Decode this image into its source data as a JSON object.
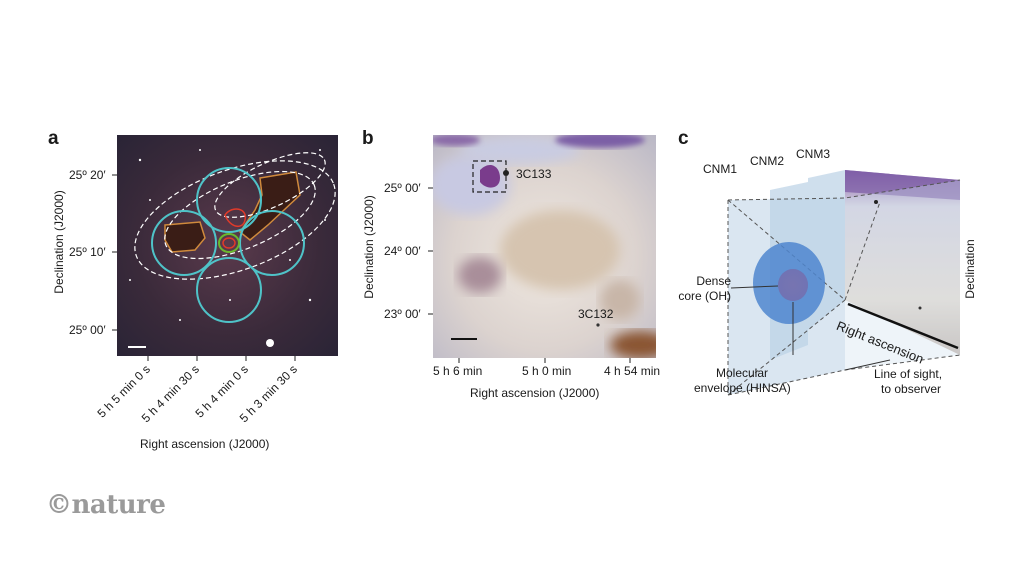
{
  "panels": {
    "a": {
      "label": "a",
      "ylabel": "Declination (J2000)",
      "xlabel": "Right ascension (J2000)",
      "yticks": [
        "25º 20′",
        "25º 10′",
        "25º 00′"
      ],
      "xticks": [
        "5 h 5 min 0 s",
        "5 h 4 min 30 s",
        "5 h 4 min 0 s",
        "5 h 3 min 30 s"
      ]
    },
    "b": {
      "label": "b",
      "ylabel": "Declination (J2000)",
      "xlabel": "Right ascension (J2000)",
      "yticks": [
        "25º 00′",
        "24º 00′",
        "23º 00′"
      ],
      "xticks": [
        "5 h 6 min",
        "5 h 0 min",
        "4 h 54 min"
      ],
      "sources": [
        "3C133",
        "3C132"
      ]
    },
    "c": {
      "label": "c",
      "layers": [
        "CNM1",
        "CNM2",
        "CNM3"
      ],
      "core_label": "Dense core (OH)",
      "core_line1": "Dense",
      "core_line2": "core (OH)",
      "envelope_line1": "Molecular",
      "envelope_line2": "envelope (HINSA)",
      "los_line1": "Line of sight,",
      "los_line2": "to observer",
      "axis_ra": "Right ascension",
      "axis_dec": "Declination"
    }
  },
  "footer": {
    "logo": "©nature"
  }
}
